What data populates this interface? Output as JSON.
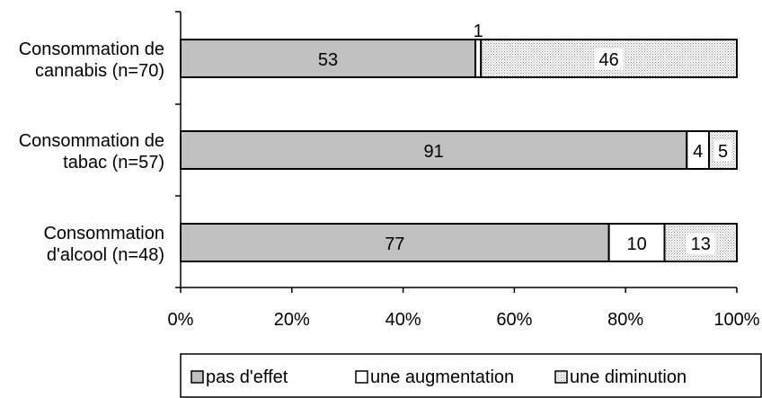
{
  "chart_data": {
    "type": "bar",
    "orientation": "horizontal",
    "stacked": "percent",
    "categories": [
      [
        "Consommation de",
        "cannabis (n=70)"
      ],
      [
        "Consommation de",
        "tabac (n=57)"
      ],
      [
        "Consommation",
        "d'alcool (n=48)"
      ]
    ],
    "series": [
      {
        "name": "pas d'effet",
        "values": [
          53,
          91,
          77
        ],
        "color": "#c0c0c0",
        "pattern": "solid"
      },
      {
        "name": "une augmentation",
        "values": [
          1,
          4,
          10
        ],
        "color": "#ffffff",
        "pattern": "solid"
      },
      {
        "name": "une diminution",
        "values": [
          46,
          5,
          13
        ],
        "color": "#e6e6e6",
        "pattern": "dotted"
      }
    ],
    "xticks": [
      "0%",
      "20%",
      "40%",
      "60%",
      "80%",
      "100%"
    ],
    "xlim": [
      0,
      100
    ],
    "grid": false,
    "legend": "bottom"
  }
}
